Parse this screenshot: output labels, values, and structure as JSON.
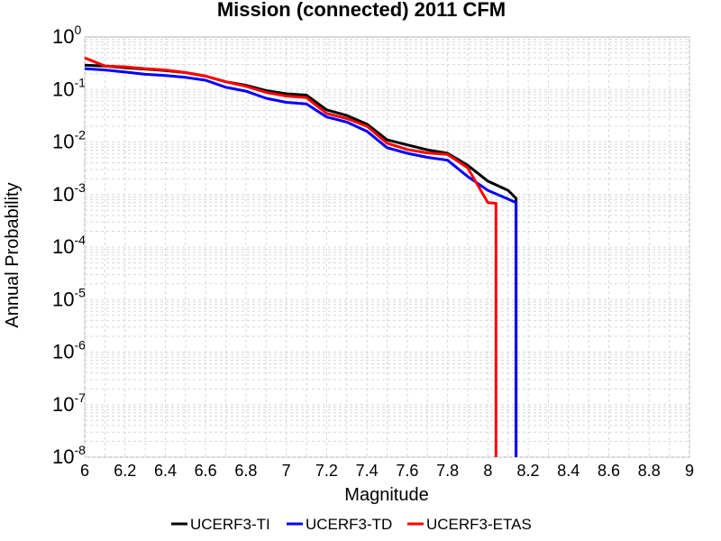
{
  "chart_data": {
    "type": "line",
    "title": "Mission (connected) 2011 CFM",
    "xlabel": "Magnitude",
    "ylabel": "Annual Probability",
    "xlim": [
      6,
      9
    ],
    "ylim": [
      1e-08,
      1
    ],
    "yscale": "log",
    "grid": true,
    "legend_position": "bottom",
    "x_ticks": [
      "6",
      "6.2",
      "6.4",
      "6.6",
      "6.8",
      "7",
      "7.2",
      "7.4",
      "7.6",
      "7.8",
      "8",
      "8.2",
      "8.4",
      "8.6",
      "8.8",
      "9"
    ],
    "y_ticks": [
      {
        "base": "10",
        "exp": "0"
      },
      {
        "base": "10",
        "exp": "-1"
      },
      {
        "base": "10",
        "exp": "-2"
      },
      {
        "base": "10",
        "exp": "-3"
      },
      {
        "base": "10",
        "exp": "-4"
      },
      {
        "base": "10",
        "exp": "-5"
      },
      {
        "base": "10",
        "exp": "-6"
      },
      {
        "base": "10",
        "exp": "-7"
      },
      {
        "base": "10",
        "exp": "-8"
      }
    ],
    "series": [
      {
        "name": "UCERF3-TI",
        "color": "#000000",
        "x": [
          6.0,
          6.1,
          6.2,
          6.3,
          6.4,
          6.5,
          6.6,
          6.7,
          6.8,
          6.9,
          7.0,
          7.1,
          7.2,
          7.3,
          7.4,
          7.5,
          7.6,
          7.7,
          7.8,
          7.9,
          8.0,
          8.1,
          8.14,
          8.14
        ],
        "y": [
          0.29,
          0.28,
          0.26,
          0.245,
          0.23,
          0.21,
          0.18,
          0.14,
          0.12,
          0.095,
          0.083,
          0.078,
          0.041,
          0.032,
          0.022,
          0.011,
          0.0088,
          0.0071,
          0.0061,
          0.0036,
          0.0018,
          0.0012,
          0.00085,
          1e-08
        ]
      },
      {
        "name": "UCERF3-TD",
        "color": "#0000ff",
        "x": [
          6.0,
          6.1,
          6.2,
          6.3,
          6.4,
          6.5,
          6.6,
          6.7,
          6.8,
          6.9,
          7.0,
          7.1,
          7.2,
          7.3,
          7.4,
          7.5,
          7.6,
          7.7,
          7.8,
          7.9,
          8.0,
          8.1,
          8.14,
          8.14
        ],
        "y": [
          0.25,
          0.235,
          0.215,
          0.195,
          0.185,
          0.17,
          0.15,
          0.11,
          0.093,
          0.068,
          0.057,
          0.053,
          0.03,
          0.024,
          0.016,
          0.0078,
          0.0061,
          0.0051,
          0.0045,
          0.0022,
          0.0012,
          0.00082,
          0.0007,
          1e-08
        ]
      },
      {
        "name": "UCERF3-ETAS",
        "color": "#ff0000",
        "x": [
          6.0,
          6.1,
          6.2,
          6.3,
          6.4,
          6.5,
          6.6,
          6.7,
          6.8,
          6.9,
          7.0,
          7.1,
          7.2,
          7.3,
          7.4,
          7.5,
          7.6,
          7.7,
          7.8,
          7.9,
          8.0,
          8.04,
          8.04
        ],
        "y": [
          0.4,
          0.28,
          0.27,
          0.25,
          0.235,
          0.21,
          0.18,
          0.14,
          0.115,
          0.088,
          0.075,
          0.07,
          0.035,
          0.028,
          0.02,
          0.0095,
          0.0072,
          0.0062,
          0.0058,
          0.0032,
          0.0007,
          0.00068,
          1e-08
        ]
      }
    ]
  }
}
